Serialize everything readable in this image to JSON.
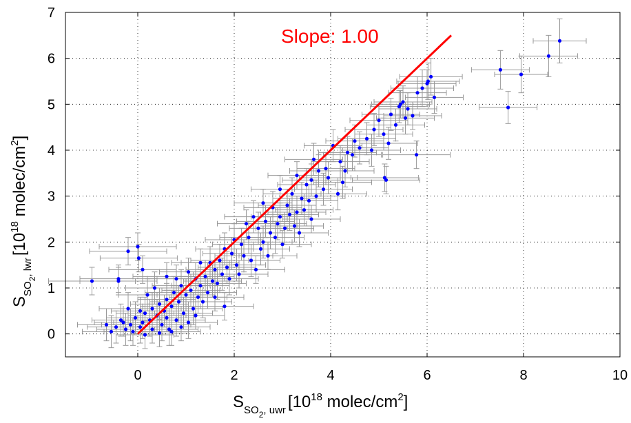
{
  "chart_data": {
    "type": "scatter",
    "title": "",
    "xlabel": {
      "main": "S",
      "sub_mid": "SO",
      "sub_2": "2",
      "sub_tail": ", uwr",
      "bracket": "[10",
      "exp": "18",
      "unit": " molec/cm",
      "unit_exp": "2",
      "close": "]"
    },
    "ylabel": {
      "main": "S",
      "sub_mid": "SO",
      "sub_2": "2",
      "sub_tail": ", lwr",
      "bracket": "[10",
      "exp": "18",
      "unit": " molec/cm",
      "unit_exp": "2",
      "close": "]"
    },
    "xlim": [
      -1.5,
      10
    ],
    "ylim": [
      -0.5,
      7
    ],
    "xticks": [
      0,
      2,
      4,
      6,
      8,
      10
    ],
    "yticks": [
      0,
      1,
      2,
      3,
      4,
      5,
      6,
      7
    ],
    "grid": true,
    "annotation": {
      "text": "Slope: 1.00",
      "color": "#ff0000"
    },
    "fit_line": {
      "x": [
        0,
        6.5
      ],
      "y": [
        0,
        6.5
      ],
      "slope": 1.0,
      "color": "#ff0000"
    },
    "point_color": "#0000ff",
    "errorbar_color": "#999999",
    "series": [
      {
        "points": [
          [
            8.75,
            6.38,
            0.55,
            0.48
          ],
          [
            8.52,
            6.05,
            0.6,
            0.45
          ],
          [
            7.95,
            5.65,
            0.55,
            0.4
          ],
          [
            7.52,
            5.75,
            0.6,
            0.42
          ],
          [
            7.68,
            4.93,
            0.6,
            0.35
          ],
          [
            6.08,
            5.6,
            0.65,
            0.4
          ],
          [
            6.02,
            5.5,
            0.65,
            0.4
          ],
          [
            5.9,
            5.35,
            0.65,
            0.4
          ],
          [
            6.15,
            5.15,
            0.6,
            0.35
          ],
          [
            5.8,
            5.25,
            0.6,
            0.35
          ],
          [
            5.5,
            5.05,
            0.6,
            0.35
          ],
          [
            5.6,
            4.9,
            0.6,
            0.35
          ],
          [
            5.42,
            4.95,
            0.6,
            0.35
          ],
          [
            5.25,
            4.78,
            0.6,
            0.35
          ],
          [
            5.55,
            4.7,
            0.6,
            0.35
          ],
          [
            5.35,
            4.55,
            0.6,
            0.35
          ],
          [
            5.0,
            4.65,
            0.6,
            0.35
          ],
          [
            4.9,
            4.45,
            0.6,
            0.35
          ],
          [
            5.1,
            4.35,
            0.6,
            0.35
          ],
          [
            4.75,
            4.25,
            0.6,
            0.35
          ],
          [
            4.6,
            4.05,
            0.6,
            0.35
          ],
          [
            5.78,
            3.9,
            0.7,
            0.3
          ],
          [
            5.15,
            3.35,
            0.7,
            0.3
          ],
          [
            5.12,
            3.4,
            0.7,
            0.3
          ],
          [
            4.45,
            3.9,
            0.6,
            0.35
          ],
          [
            4.2,
            3.75,
            0.6,
            0.35
          ],
          [
            4.05,
            4.1,
            0.6,
            0.35
          ],
          [
            4.3,
            3.55,
            0.6,
            0.35
          ],
          [
            3.95,
            3.4,
            0.6,
            0.35
          ],
          [
            3.75,
            3.55,
            0.6,
            0.35
          ],
          [
            3.6,
            3.35,
            0.6,
            0.35
          ],
          [
            4.15,
            3.05,
            0.6,
            0.35
          ],
          [
            3.85,
            3.15,
            0.6,
            0.35
          ],
          [
            3.5,
            3.25,
            0.6,
            0.35
          ],
          [
            3.4,
            2.95,
            0.6,
            0.35
          ],
          [
            3.2,
            3.05,
            0.6,
            0.35
          ],
          [
            3.1,
            2.8,
            0.6,
            0.35
          ],
          [
            3.3,
            2.65,
            0.6,
            0.35
          ],
          [
            2.95,
            2.55,
            0.6,
            0.35
          ],
          [
            2.8,
            2.75,
            0.6,
            0.35
          ],
          [
            2.65,
            2.45,
            0.6,
            0.35
          ],
          [
            3.05,
            2.3,
            0.6,
            0.35
          ],
          [
            2.75,
            2.2,
            0.6,
            0.35
          ],
          [
            2.5,
            2.3,
            0.6,
            0.35
          ],
          [
            2.4,
            2.55,
            0.6,
            0.35
          ],
          [
            2.3,
            2.1,
            0.6,
            0.35
          ],
          [
            2.15,
            1.95,
            0.6,
            0.35
          ],
          [
            2.55,
            1.85,
            0.6,
            0.35
          ],
          [
            2.0,
            2.05,
            0.6,
            0.35
          ],
          [
            1.95,
            1.75,
            0.6,
            0.35
          ],
          [
            1.8,
            1.85,
            0.6,
            0.35
          ],
          [
            1.7,
            1.6,
            0.6,
            0.35
          ],
          [
            1.85,
            1.45,
            0.6,
            0.35
          ],
          [
            1.6,
            1.4,
            0.6,
            0.35
          ],
          [
            1.5,
            1.55,
            0.6,
            0.35
          ],
          [
            1.4,
            1.25,
            0.6,
            0.35
          ],
          [
            1.55,
            1.15,
            0.6,
            0.35
          ],
          [
            1.3,
            1.05,
            0.6,
            0.35
          ],
          [
            1.2,
            1.2,
            0.6,
            0.35
          ],
          [
            1.1,
            0.95,
            0.6,
            0.35
          ],
          [
            1.25,
            0.8,
            0.6,
            0.35
          ],
          [
            1.0,
            0.85,
            0.6,
            0.35
          ],
          [
            0.9,
            1.05,
            0.6,
            0.35
          ],
          [
            0.85,
            0.7,
            0.6,
            0.35
          ],
          [
            0.75,
            0.9,
            0.6,
            0.35
          ],
          [
            0.7,
            0.6,
            0.6,
            0.35
          ],
          [
            0.6,
            0.75,
            0.6,
            0.35
          ],
          [
            0.55,
            0.5,
            0.6,
            0.35
          ],
          [
            0.45,
            0.65,
            0.6,
            0.35
          ],
          [
            0.4,
            0.4,
            0.6,
            0.35
          ],
          [
            0.3,
            0.55,
            0.6,
            0.35
          ],
          [
            0.25,
            0.3,
            0.6,
            0.35
          ],
          [
            0.15,
            0.45,
            0.6,
            0.35
          ],
          [
            0.1,
            0.25,
            0.6,
            0.35
          ],
          [
            0.05,
            0.15,
            0.6,
            0.35
          ],
          [
            -0.05,
            0.35,
            0.6,
            0.35
          ],
          [
            -0.15,
            0.2,
            0.6,
            0.35
          ],
          [
            -0.25,
            0.1,
            0.6,
            0.35
          ],
          [
            -0.35,
            0.3,
            0.6,
            0.35
          ],
          [
            -0.45,
            0.15,
            0.6,
            0.35
          ],
          [
            -0.55,
            0.05,
            0.6,
            0.35
          ],
          [
            -0.65,
            0.2,
            0.6,
            0.35
          ],
          [
            -0.2,
            0.55,
            0.6,
            0.35
          ],
          [
            0.2,
            0.85,
            0.6,
            0.35
          ],
          [
            0.35,
            1.0,
            0.6,
            0.35
          ],
          [
            0.5,
            0.2,
            0.6,
            0.35
          ],
          [
            0.65,
            0.1,
            0.6,
            0.35
          ],
          [
            0.8,
            0.3,
            0.6,
            0.35
          ],
          [
            0.95,
            0.45,
            0.6,
            0.35
          ],
          [
            1.05,
            0.25,
            0.6,
            0.35
          ],
          [
            1.15,
            0.55,
            0.6,
            0.35
          ],
          [
            1.35,
            0.7,
            0.6,
            0.35
          ],
          [
            1.45,
            0.9,
            0.6,
            0.35
          ],
          [
            1.65,
            1.1,
            0.6,
            0.35
          ],
          [
            1.75,
            1.3,
            0.6,
            0.35
          ],
          [
            1.9,
            1.2,
            0.6,
            0.35
          ],
          [
            2.05,
            1.5,
            0.6,
            0.35
          ],
          [
            2.2,
            1.7,
            0.6,
            0.35
          ],
          [
            2.35,
            1.6,
            0.6,
            0.35
          ],
          [
            2.6,
            2.0,
            0.6,
            0.35
          ],
          [
            2.85,
            2.1,
            0.6,
            0.35
          ],
          [
            2.9,
            2.4,
            0.6,
            0.35
          ],
          [
            3.15,
            2.6,
            0.6,
            0.35
          ],
          [
            3.25,
            2.35,
            0.6,
            0.35
          ],
          [
            3.45,
            2.7,
            0.6,
            0.35
          ],
          [
            3.55,
            2.9,
            0.6,
            0.35
          ],
          [
            3.7,
            3.0,
            0.6,
            0.35
          ],
          [
            3.65,
            3.8,
            0.6,
            0.35
          ],
          [
            3.9,
            3.6,
            0.6,
            0.35
          ],
          [
            4.25,
            3.3,
            0.6,
            0.35
          ],
          [
            4.35,
            3.95,
            0.6,
            0.35
          ],
          [
            4.5,
            4.2,
            0.6,
            0.35
          ],
          [
            4.85,
            4.0,
            0.6,
            0.35
          ],
          [
            5.2,
            4.15,
            0.6,
            0.35
          ],
          [
            0.0,
            1.9,
            0.8,
            0.3
          ],
          [
            0.02,
            1.65,
            0.8,
            0.3
          ],
          [
            -0.2,
            1.8,
            0.8,
            0.3
          ],
          [
            -0.95,
            1.15,
            0.9,
            0.3
          ],
          [
            -0.4,
            1.2,
            0.8,
            0.3
          ],
          [
            -0.4,
            1.15,
            0.8,
            0.3
          ],
          [
            0.1,
            1.4,
            0.7,
            0.3
          ],
          [
            0.6,
            1.25,
            0.7,
            0.3
          ],
          [
            0.3,
            0.1,
            0.6,
            0.3
          ],
          [
            0.15,
            -0.02,
            0.6,
            0.3
          ],
          [
            0.45,
            0.02,
            0.6,
            0.3
          ],
          [
            0.7,
            0.05,
            0.6,
            0.3
          ],
          [
            -0.1,
            0.05,
            0.6,
            0.3
          ],
          [
            -0.3,
            0.25,
            0.6,
            0.3
          ],
          [
            0.05,
            0.5,
            0.6,
            0.3
          ],
          [
            0.6,
            0.35,
            0.6,
            0.3
          ],
          [
            0.9,
            0.15,
            0.6,
            0.3
          ],
          [
            1.2,
            0.4,
            0.6,
            0.3
          ],
          [
            1.6,
            0.8,
            0.6,
            0.3
          ],
          [
            1.8,
            0.6,
            0.6,
            0.3
          ],
          [
            2.1,
            1.3,
            0.6,
            0.3
          ],
          [
            2.45,
            1.4,
            0.6,
            0.3
          ],
          [
            2.7,
            1.7,
            0.6,
            0.3
          ],
          [
            3.0,
            1.95,
            0.6,
            0.3
          ],
          [
            3.35,
            2.2,
            0.6,
            0.3
          ],
          [
            3.6,
            2.5,
            0.6,
            0.3
          ],
          [
            1.3,
            1.55,
            0.6,
            0.3
          ],
          [
            1.05,
            1.35,
            0.6,
            0.3
          ],
          [
            0.8,
            1.2,
            0.6,
            0.3
          ],
          [
            2.25,
            2.4,
            0.6,
            0.3
          ],
          [
            2.6,
            2.85,
            0.6,
            0.3
          ],
          [
            2.95,
            3.15,
            0.6,
            0.3
          ],
          [
            3.3,
            3.45,
            0.6,
            0.3
          ],
          [
            5.45,
            5.0,
            0.6,
            0.3
          ],
          [
            5.7,
            4.75,
            0.6,
            0.3
          ],
          [
            6.0,
            5.45,
            0.6,
            0.3
          ]
        ]
      }
    ]
  }
}
